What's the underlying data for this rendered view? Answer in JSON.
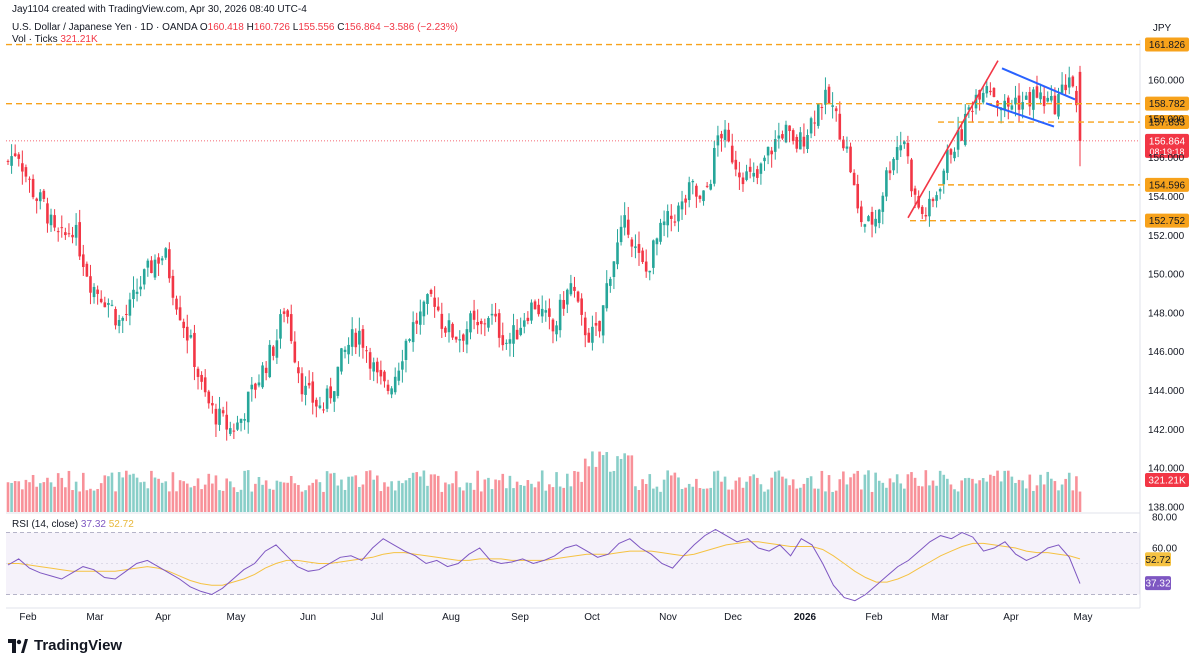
{
  "header": {
    "created_by": "Jay1104 created with TradingView.com, Apr 30, 2026 08:40 UTC-4",
    "symbol": "U.S. Dollar / Japanese Yen · 1D · OANDA",
    "o_label": "O",
    "o_value": "160.418",
    "h_label": "H",
    "h_value": "160.726",
    "l_label": "L",
    "l_value": "155.556",
    "c_label": "C",
    "c_value": "156.864",
    "change": "−3.586 (−2.23%)",
    "vol_label": "Vol · Ticks",
    "vol_value": "321.21K",
    "rsi_label": "RSI (14, close)",
    "rsi_value": "37.32",
    "rsi_ma_value": "52.72"
  },
  "currency": "JPY",
  "footer": {
    "brand": "TradingView"
  },
  "colors": {
    "up": "#26a69a",
    "down": "#f23645",
    "level": "#f7a21b",
    "rsi": "#7e57c2",
    "rsi_ma": "#f5c242",
    "pattern_blue": "#2962ff",
    "pattern_red": "#f23645"
  },
  "chart_data": {
    "type": "candlestick",
    "y_ticks": [
      "160.000",
      "158.000",
      "156.000",
      "154.000",
      "152.000",
      "150.000",
      "148.000",
      "146.000",
      "144.000",
      "142.000",
      "140.000",
      "138.000"
    ],
    "x_ticks": [
      "Feb",
      "Mar",
      "Apr",
      "May",
      "Jun",
      "Jul",
      "Aug",
      "Sep",
      "Oct",
      "Nov",
      "Dec",
      "2026",
      "Feb",
      "Mar",
      "Apr",
      "May"
    ],
    "levels": [
      {
        "label": "161.826",
        "value": 161.826
      },
      {
        "label": "158.782",
        "value": 158.782
      },
      {
        "label": "157.833",
        "value": 157.833
      },
      {
        "label": "154.596",
        "value": 154.596
      },
      {
        "label": "152.752",
        "value": 152.752
      }
    ],
    "last_price": {
      "label": "156.864",
      "value": 156.864,
      "countdown": "08:19:18"
    },
    "volume_last": "321.21K",
    "rsi": {
      "ticks": [
        "80.00",
        "60.00"
      ],
      "bands": [
        70,
        30
      ],
      "ma_label": "52.72",
      "ma_value": 52.72,
      "value_label": "37.32",
      "value": 37.32
    },
    "series_close_points": [
      [
        155.8,
        156.5,
        155.0,
        154.0,
        153.5,
        152.0,
        151.8,
        152.5,
        151.0,
        149.5,
        149.0,
        148.5,
        147.5,
        148.0,
        149.2,
        150.0,
        150.8,
        151.0,
        149.0,
        147.5,
        146.0,
        144.0,
        143.0,
        142.5,
        142.0,
        142.3,
        143.5,
        144.5,
        145.5,
        146.5,
        148.5,
        146.0,
        144.0,
        143.5,
        143.0,
        144.0,
        145.5,
        146.5,
        147.0,
        146.0,
        144.5,
        144.0,
        145.0,
        146.5,
        147.5,
        148.0,
        149.0,
        147.5,
        147.0,
        146.8,
        147.5,
        147.0,
        148.0,
        147.2,
        146.5,
        147.0,
        148.0,
        148.5,
        147.8,
        147.0,
        148.5,
        149.5,
        147.5,
        146.8,
        147.0,
        150.0,
        151.5,
        152.8,
        151.0,
        150.0,
        151.5,
        152.5,
        153.0,
        153.5,
        154.5,
        153.5,
        155.0,
        157.5,
        156.5,
        155.5,
        155.0,
        154.8,
        156.0,
        156.8,
        157.5,
        156.5,
        157.0,
        158.0,
        159.0,
        158.8,
        157.5,
        156.0,
        153.0,
        152.5,
        153.0,
        155.0,
        156.5,
        157.0,
        154.0,
        153.0,
        153.5,
        155.0,
        156.5,
        157.0,
        158.5,
        159.5,
        160.0,
        159.0,
        158.5,
        159.0,
        158.8,
        159.2,
        159.0,
        158.6,
        159.3,
        160.5,
        156.9
      ]
    ],
    "rsi_points": [
      [
        49,
        53,
        47,
        44,
        42,
        40,
        44,
        48,
        46,
        41,
        40,
        45,
        50,
        52,
        48,
        44,
        40,
        35,
        32,
        30,
        34,
        40,
        46,
        50,
        58,
        62,
        55,
        48,
        45,
        46,
        50,
        54,
        55,
        52,
        60,
        66,
        62,
        58,
        55,
        50,
        52,
        48,
        50,
        56,
        60,
        52,
        50,
        51,
        53,
        50,
        52,
        55,
        60,
        62,
        58,
        54,
        56,
        63,
        66,
        60,
        56,
        50,
        47,
        55,
        62,
        68,
        72,
        68,
        64,
        66,
        60,
        58,
        62,
        55,
        66,
        62,
        50,
        36,
        28,
        26,
        30,
        36,
        42,
        48,
        52,
        58,
        64,
        68,
        66,
        70,
        67,
        58,
        60,
        64,
        56,
        52,
        55,
        60,
        62,
        54,
        37
      ]
    ],
    "rsi_ma_points": [
      [
        50,
        50,
        49,
        48,
        47,
        46,
        45,
        45,
        45,
        45,
        45,
        46,
        47,
        48,
        47,
        45,
        42,
        39,
        37,
        36,
        36,
        38,
        40,
        43,
        47,
        50,
        52,
        52,
        51,
        50,
        50,
        51,
        52,
        53,
        54,
        56,
        57,
        57,
        56,
        55,
        54,
        53,
        52,
        52,
        53,
        53,
        53,
        52,
        52,
        52,
        52,
        53,
        54,
        55,
        56,
        56,
        56,
        57,
        58,
        58,
        58,
        57,
        56,
        55,
        56,
        58,
        60,
        62,
        63,
        64,
        64,
        63,
        62,
        61,
        61,
        61,
        59,
        55,
        50,
        45,
        41,
        38,
        38,
        40,
        43,
        47,
        51,
        55,
        58,
        61,
        63,
        63,
        62,
        61,
        60,
        58,
        57,
        57,
        56,
        55,
        53
      ]
    ]
  }
}
